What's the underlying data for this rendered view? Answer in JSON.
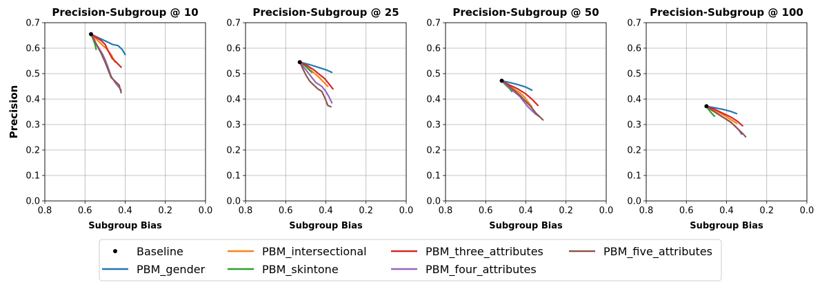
{
  "chart_data": {
    "type": "line",
    "shared_ylabel": "Precision",
    "xlim": [
      0.8,
      0.0
    ],
    "ylim": [
      0.0,
      0.7
    ],
    "xticks": [
      "0.8",
      "0.6",
      "0.4",
      "0.2",
      "0.0"
    ],
    "yticks": [
      "0.0",
      "0.1",
      "0.2",
      "0.3",
      "0.4",
      "0.5",
      "0.6",
      "0.7"
    ],
    "grid": true,
    "legend": {
      "placement": "bottom-center",
      "entries": [
        {
          "label": "Baseline",
          "marker": "point",
          "color": "#000000"
        },
        {
          "label": "PBM_gender",
          "marker": "line",
          "color": "#1f77b4"
        },
        {
          "label": "PBM_intersectional",
          "marker": "line",
          "color": "#ff7f0e"
        },
        {
          "label": "PBM_skintone",
          "marker": "line",
          "color": "#2ca02c"
        },
        {
          "label": "PBM_three_attributes",
          "marker": "line",
          "color": "#d62728"
        },
        {
          "label": "PBM_four_attributes",
          "marker": "line",
          "color": "#9467bd"
        },
        {
          "label": "PBM_five_attributes",
          "marker": "line",
          "color": "#8c564b"
        }
      ]
    },
    "panels": [
      {
        "title": "Precision-Subgroup @ 10",
        "xlabel": "Subgroup Bias",
        "baseline": [
          0.57,
          0.655
        ],
        "series": [
          {
            "name": "PBM_gender",
            "color": "#1f77b4",
            "points": [
              [
                0.57,
                0.655
              ],
              [
                0.53,
                0.64
              ],
              [
                0.49,
                0.625
              ],
              [
                0.465,
                0.615
              ],
              [
                0.435,
                0.61
              ],
              [
                0.415,
                0.595
              ],
              [
                0.4,
                0.575
              ]
            ]
          },
          {
            "name": "PBM_intersectional",
            "color": "#ff7f0e",
            "points": [
              [
                0.57,
                0.655
              ],
              [
                0.55,
                0.64
              ],
              [
                0.53,
                0.625
              ],
              [
                0.51,
                0.61
              ],
              [
                0.49,
                0.595
              ],
              [
                0.47,
                0.575
              ],
              [
                0.45,
                0.545
              ]
            ]
          },
          {
            "name": "PBM_skintone",
            "color": "#2ca02c",
            "points": [
              [
                0.57,
                0.655
              ],
              [
                0.56,
                0.635
              ],
              [
                0.55,
                0.615
              ],
              [
                0.545,
                0.595
              ]
            ]
          },
          {
            "name": "PBM_three_attributes",
            "color": "#d62728",
            "points": [
              [
                0.57,
                0.655
              ],
              [
                0.55,
                0.645
              ],
              [
                0.52,
                0.63
              ],
              [
                0.5,
                0.615
              ],
              [
                0.485,
                0.59
              ],
              [
                0.465,
                0.56
              ],
              [
                0.445,
                0.545
              ],
              [
                0.42,
                0.525
              ]
            ]
          },
          {
            "name": "PBM_four_attributes",
            "color": "#9467bd",
            "points": [
              [
                0.57,
                0.655
              ],
              [
                0.555,
                0.63
              ],
              [
                0.535,
                0.605
              ],
              [
                0.515,
                0.58
              ],
              [
                0.5,
                0.555
              ],
              [
                0.485,
                0.525
              ],
              [
                0.47,
                0.49
              ],
              [
                0.45,
                0.465
              ],
              [
                0.42,
                0.435
              ]
            ]
          },
          {
            "name": "PBM_five_attributes",
            "color": "#8c564b",
            "points": [
              [
                0.57,
                0.655
              ],
              [
                0.555,
                0.635
              ],
              [
                0.54,
                0.61
              ],
              [
                0.52,
                0.58
              ],
              [
                0.5,
                0.545
              ],
              [
                0.485,
                0.515
              ],
              [
                0.47,
                0.485
              ],
              [
                0.45,
                0.47
              ],
              [
                0.43,
                0.455
              ],
              [
                0.425,
                0.44
              ],
              [
                0.42,
                0.425
              ]
            ]
          }
        ]
      },
      {
        "title": "Precision-Subgroup @ 25",
        "xlabel": "Subgroup Bias",
        "baseline": [
          0.53,
          0.545
        ],
        "series": [
          {
            "name": "PBM_gender",
            "color": "#1f77b4",
            "points": [
              [
                0.53,
                0.545
              ],
              [
                0.48,
                0.535
              ],
              [
                0.44,
                0.525
              ],
              [
                0.4,
                0.515
              ],
              [
                0.37,
                0.505
              ]
            ]
          },
          {
            "name": "PBM_intersectional",
            "color": "#ff7f0e",
            "points": [
              [
                0.53,
                0.545
              ],
              [
                0.5,
                0.53
              ],
              [
                0.47,
                0.51
              ],
              [
                0.44,
                0.49
              ],
              [
                0.415,
                0.47
              ],
              [
                0.39,
                0.45
              ]
            ]
          },
          {
            "name": "PBM_skintone",
            "color": "#2ca02c",
            "points": [
              [
                0.53,
                0.545
              ],
              [
                0.51,
                0.535
              ],
              [
                0.49,
                0.52
              ],
              [
                0.47,
                0.505
              ]
            ]
          },
          {
            "name": "PBM_three_attributes",
            "color": "#d62728",
            "points": [
              [
                0.53,
                0.545
              ],
              [
                0.49,
                0.53
              ],
              [
                0.46,
                0.515
              ],
              [
                0.43,
                0.495
              ],
              [
                0.405,
                0.48
              ],
              [
                0.385,
                0.46
              ],
              [
                0.365,
                0.44
              ]
            ]
          },
          {
            "name": "PBM_four_attributes",
            "color": "#9467bd",
            "points": [
              [
                0.53,
                0.545
              ],
              [
                0.51,
                0.525
              ],
              [
                0.49,
                0.505
              ],
              [
                0.47,
                0.485
              ],
              [
                0.45,
                0.465
              ],
              [
                0.42,
                0.45
              ],
              [
                0.4,
                0.43
              ],
              [
                0.385,
                0.41
              ],
              [
                0.37,
                0.385
              ]
            ]
          },
          {
            "name": "PBM_five_attributes",
            "color": "#8c564b",
            "points": [
              [
                0.53,
                0.545
              ],
              [
                0.515,
                0.52
              ],
              [
                0.5,
                0.495
              ],
              [
                0.48,
                0.47
              ],
              [
                0.46,
                0.455
              ],
              [
                0.44,
                0.44
              ],
              [
                0.42,
                0.43
              ],
              [
                0.405,
                0.405
              ],
              [
                0.39,
                0.375
              ],
              [
                0.375,
                0.37
              ]
            ]
          }
        ]
      },
      {
        "title": "Precision-Subgroup @ 50",
        "xlabel": "Subgroup Bias",
        "baseline": [
          0.52,
          0.472
        ],
        "series": [
          {
            "name": "PBM_gender",
            "color": "#1f77b4",
            "points": [
              [
                0.52,
                0.472
              ],
              [
                0.48,
                0.465
              ],
              [
                0.44,
                0.457
              ],
              [
                0.4,
                0.447
              ],
              [
                0.37,
                0.435
              ]
            ]
          },
          {
            "name": "PBM_intersectional",
            "color": "#ff7f0e",
            "points": [
              [
                0.52,
                0.472
              ],
              [
                0.49,
                0.455
              ],
              [
                0.46,
                0.44
              ],
              [
                0.43,
                0.425
              ],
              [
                0.41,
                0.41
              ],
              [
                0.39,
                0.39
              ],
              [
                0.37,
                0.37
              ]
            ]
          },
          {
            "name": "PBM_skintone",
            "color": "#2ca02c",
            "points": [
              [
                0.52,
                0.472
              ],
              [
                0.5,
                0.455
              ],
              [
                0.48,
                0.44
              ],
              [
                0.47,
                0.43
              ]
            ]
          },
          {
            "name": "PBM_three_attributes",
            "color": "#d62728",
            "points": [
              [
                0.52,
                0.472
              ],
              [
                0.48,
                0.455
              ],
              [
                0.44,
                0.44
              ],
              [
                0.4,
                0.42
              ],
              [
                0.37,
                0.4
              ],
              [
                0.34,
                0.375
              ]
            ]
          },
          {
            "name": "PBM_four_attributes",
            "color": "#9467bd",
            "points": [
              [
                0.52,
                0.472
              ],
              [
                0.49,
                0.45
              ],
              [
                0.46,
                0.43
              ],
              [
                0.43,
                0.41
              ],
              [
                0.41,
                0.39
              ],
              [
                0.39,
                0.37
              ],
              [
                0.37,
                0.355
              ],
              [
                0.35,
                0.34
              ],
              [
                0.33,
                0.33
              ]
            ]
          },
          {
            "name": "PBM_five_attributes",
            "color": "#8c564b",
            "points": [
              [
                0.52,
                0.472
              ],
              [
                0.49,
                0.455
              ],
              [
                0.46,
                0.435
              ],
              [
                0.43,
                0.415
              ],
              [
                0.4,
                0.39
              ],
              [
                0.375,
                0.37
              ],
              [
                0.35,
                0.345
              ],
              [
                0.33,
                0.33
              ],
              [
                0.315,
                0.318
              ]
            ]
          }
        ]
      },
      {
        "title": "Precision-Subgroup @ 100",
        "xlabel": "Subgroup Bias",
        "baseline": [
          0.5,
          0.372
        ],
        "series": [
          {
            "name": "PBM_gender",
            "color": "#1f77b4",
            "points": [
              [
                0.5,
                0.372
              ],
              [
                0.46,
                0.366
              ],
              [
                0.42,
                0.36
              ],
              [
                0.38,
                0.352
              ],
              [
                0.35,
                0.343
              ]
            ]
          },
          {
            "name": "PBM_intersectional",
            "color": "#ff7f0e",
            "points": [
              [
                0.5,
                0.372
              ],
              [
                0.47,
                0.36
              ],
              [
                0.44,
                0.348
              ],
              [
                0.41,
                0.335
              ],
              [
                0.38,
                0.32
              ],
              [
                0.35,
                0.305
              ]
            ]
          },
          {
            "name": "PBM_skintone",
            "color": "#2ca02c",
            "points": [
              [
                0.5,
                0.372
              ],
              [
                0.49,
                0.36
              ],
              [
                0.475,
                0.345
              ],
              [
                0.46,
                0.333
              ]
            ]
          },
          {
            "name": "PBM_three_attributes",
            "color": "#d62728",
            "points": [
              [
                0.5,
                0.372
              ],
              [
                0.46,
                0.36
              ],
              [
                0.42,
                0.345
              ],
              [
                0.38,
                0.33
              ],
              [
                0.35,
                0.315
              ],
              [
                0.32,
                0.295
              ]
            ]
          },
          {
            "name": "PBM_four_attributes",
            "color": "#9467bd",
            "points": [
              [
                0.5,
                0.372
              ],
              [
                0.47,
                0.355
              ],
              [
                0.44,
                0.34
              ],
              [
                0.41,
                0.325
              ],
              [
                0.38,
                0.31
              ],
              [
                0.36,
                0.295
              ],
              [
                0.34,
                0.28
              ],
              [
                0.325,
                0.262
              ]
            ]
          },
          {
            "name": "PBM_five_attributes",
            "color": "#8c564b",
            "points": [
              [
                0.5,
                0.372
              ],
              [
                0.47,
                0.355
              ],
              [
                0.44,
                0.34
              ],
              [
                0.41,
                0.325
              ],
              [
                0.38,
                0.31
              ],
              [
                0.36,
                0.295
              ],
              [
                0.34,
                0.28
              ],
              [
                0.32,
                0.265
              ],
              [
                0.305,
                0.252
              ]
            ]
          }
        ]
      }
    ]
  }
}
